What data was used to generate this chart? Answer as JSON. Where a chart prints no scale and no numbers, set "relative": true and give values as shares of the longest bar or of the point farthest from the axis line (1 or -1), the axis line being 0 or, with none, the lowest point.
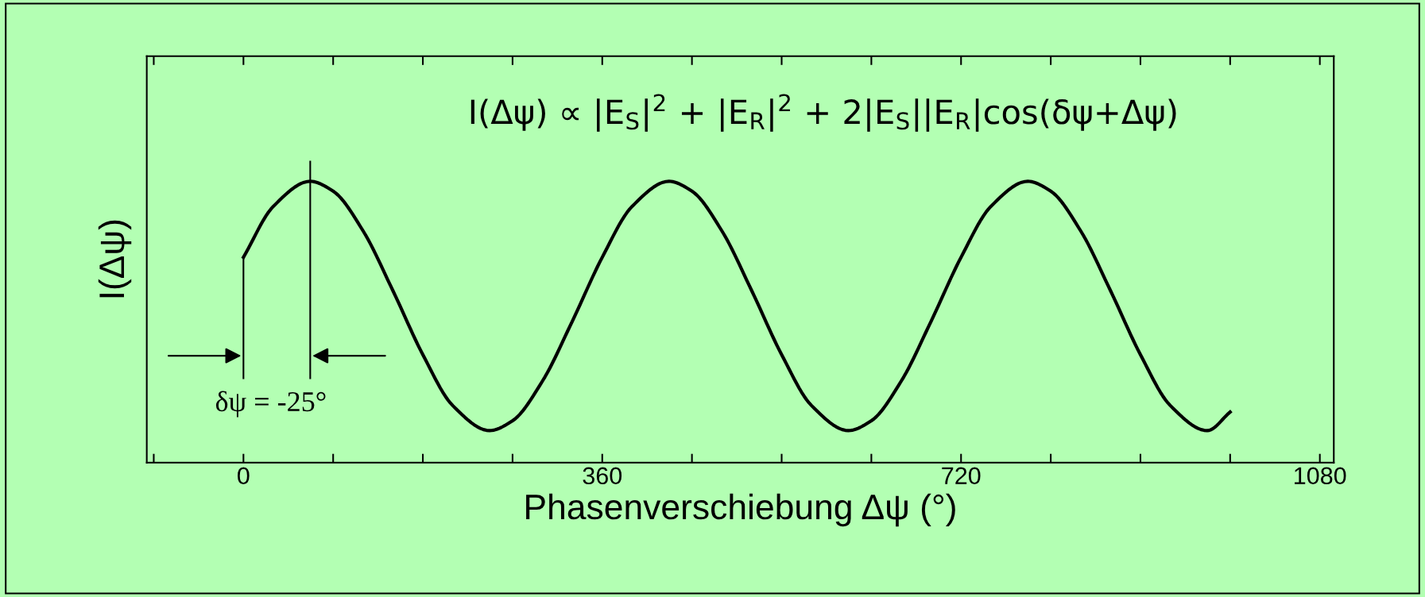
{
  "chart_data": {
    "type": "line",
    "relative": true,
    "xlabel": "Phasenverschiebung Δψ (°)",
    "ylabel": "I(Δψ)",
    "annotations": [
      "I(Δψ) ∝ |E$_{S}$|$^{2}$ + |E$_{R}$|$^{2}$ + 2|E$_{S}$||E$_{R}$|cos(δψ+Δψ)",
      "δψ = -25°"
    ],
    "x": [
      0,
      30,
      67,
      90,
      120,
      150,
      180,
      210,
      247,
      270,
      300,
      330,
      360,
      390,
      427,
      450,
      480,
      510,
      540,
      570,
      607,
      630,
      660,
      690,
      720,
      750,
      787,
      810,
      840,
      870,
      900,
      930,
      967,
      990
    ],
    "series": [
      {
        "color": "#000000",
        "values": [
          0.73,
          0.911,
          1.0,
          0.965,
          0.824,
          0.611,
          0.384,
          0.203,
          0.114,
          0.149,
          0.29,
          0.503,
          0.73,
          0.911,
          1.0,
          0.965,
          0.824,
          0.611,
          0.384,
          0.203,
          0.114,
          0.149,
          0.29,
          0.503,
          0.73,
          0.911,
          1.0,
          0.965,
          0.824,
          0.611,
          0.384,
          0.203,
          0.114,
          0.18
        ]
      }
    ],
    "xlim": [
      -97,
      1094
    ],
    "xticks": [
      {
        "value": -90,
        "label": null
      },
      0,
      {
        "value": 90,
        "label": null
      },
      {
        "value": 180,
        "label": null
      },
      {
        "value": 270,
        "label": null
      },
      360,
      {
        "value": 450,
        "label": null
      },
      {
        "value": 540,
        "label": null
      },
      {
        "value": 630,
        "label": null
      },
      720,
      {
        "value": 810,
        "label": null
      },
      {
        "value": 900,
        "label": null
      },
      {
        "value": 990,
        "label": null
      },
      1080
    ],
    "tick_labels": "x",
    "grid": false,
    "legend": false,
    "marker": "none",
    "line_style": "solid"
  }
}
